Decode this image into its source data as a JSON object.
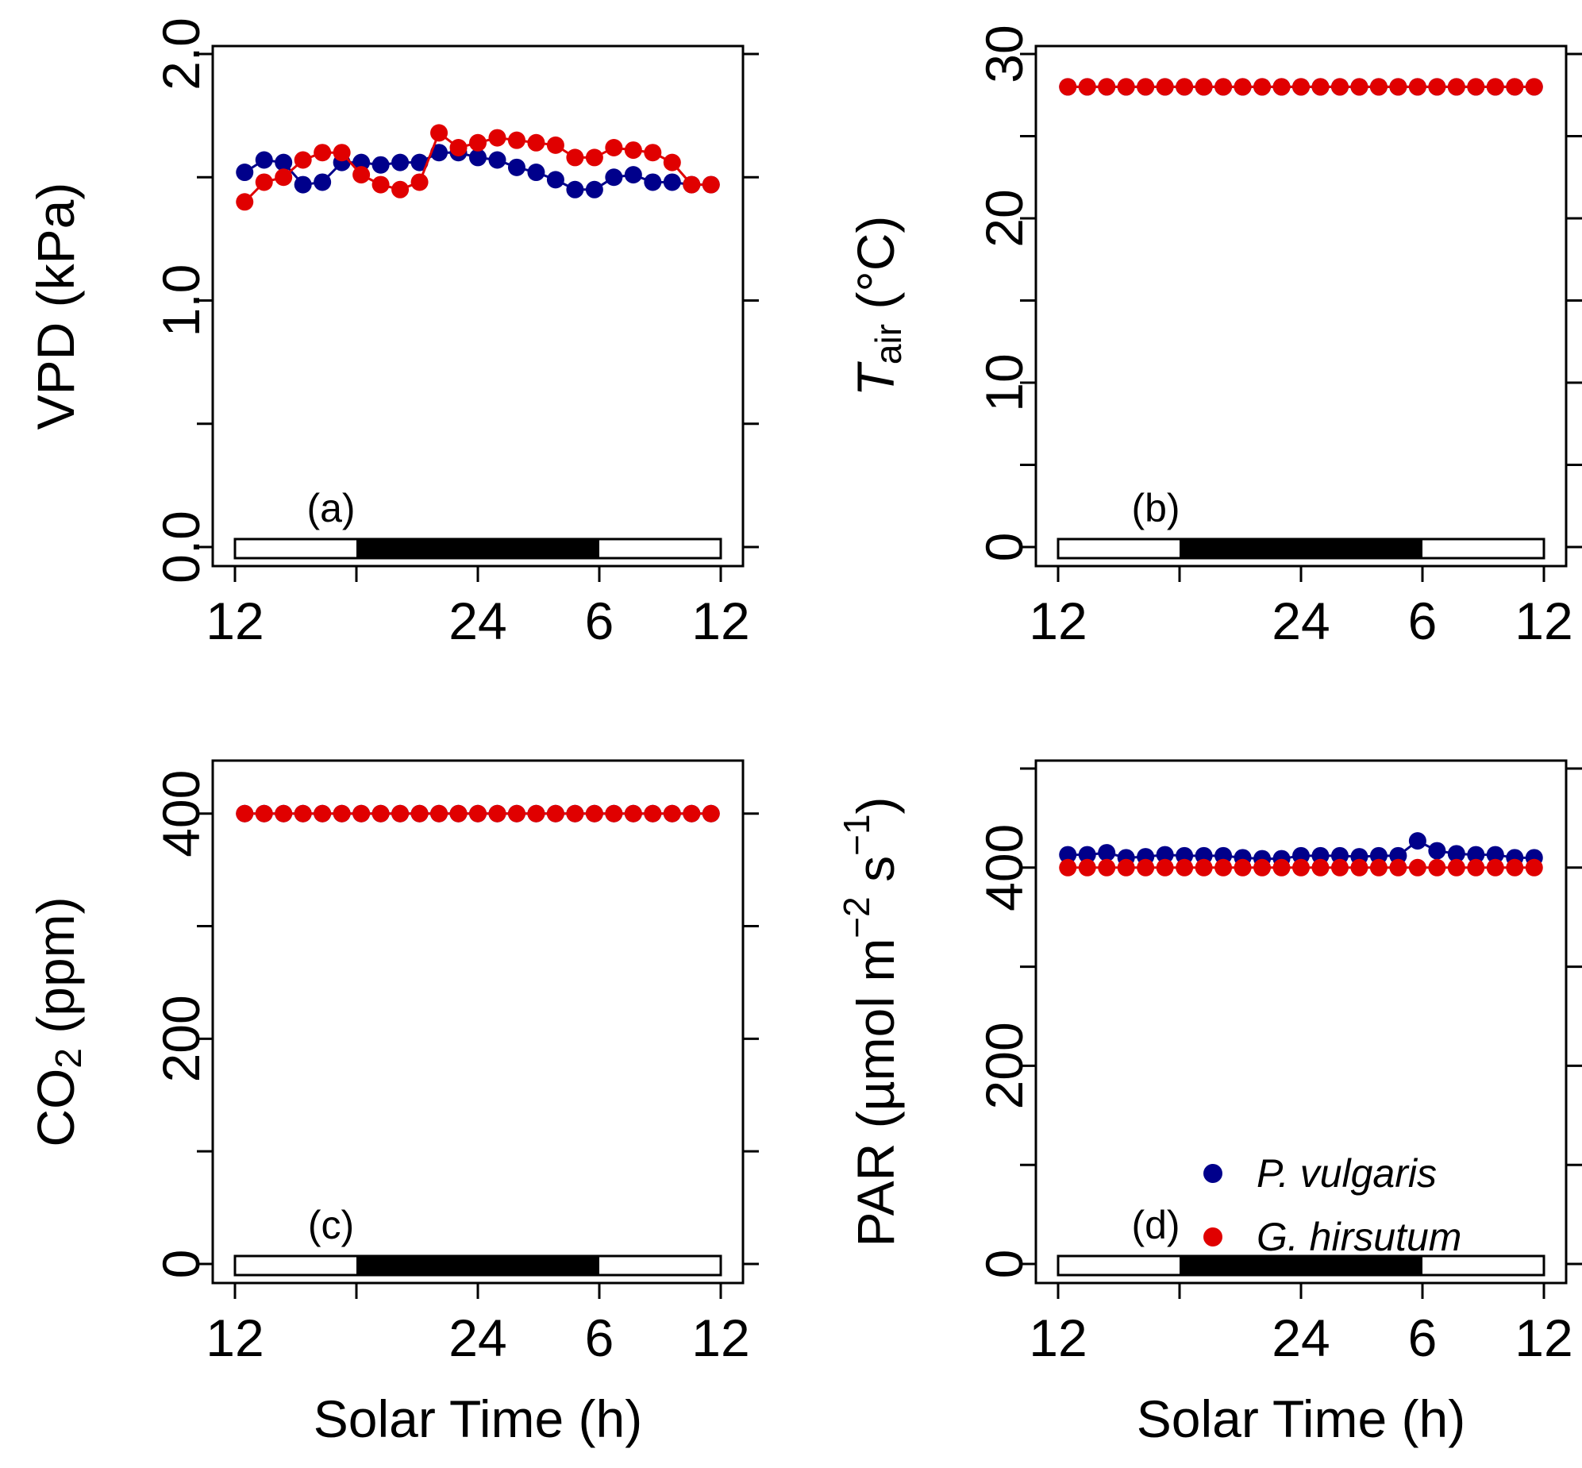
{
  "colors": {
    "p_vulgaris": "#00008b",
    "g_hirsutum": "#e00000",
    "axis": "#000000"
  },
  "legend": {
    "entries": [
      {
        "label": "P. vulgaris",
        "color": "#00008b"
      },
      {
        "label": "G. hirsutum",
        "color": "#e00000"
      }
    ]
  },
  "x_axis": {
    "label": "Solar Time (h)",
    "tick_labels": [
      "12",
      "24",
      "6",
      "12"
    ],
    "tick_positions_hours_since_noon": [
      0,
      12,
      18,
      24
    ],
    "night_start_hours_since_noon": 6,
    "night_end_hours_since_noon": 18
  },
  "chart_data": [
    {
      "type": "line",
      "panel": "(a)",
      "ylabel": "VPD (kPa)",
      "ylim": [
        0,
        2.0
      ],
      "y_ticks": [
        0,
        0.5,
        1.0,
        1.5,
        2.0
      ],
      "y_tick_labels": [
        "0.0",
        "",
        "1.0",
        "",
        "2.0"
      ],
      "x": [
        1,
        2,
        3,
        4,
        5,
        6,
        7,
        8,
        9,
        10,
        11,
        12,
        13,
        14,
        15,
        16,
        17,
        18,
        19,
        20,
        21,
        22,
        23,
        24,
        25
      ],
      "series": [
        {
          "name": "P. vulgaris",
          "values": [
            1.52,
            1.57,
            1.56,
            1.47,
            1.48,
            1.56,
            1.56,
            1.55,
            1.56,
            1.56,
            1.6,
            1.6,
            1.58,
            1.57,
            1.54,
            1.52,
            1.49,
            1.45,
            1.45,
            1.5,
            1.51,
            1.48,
            1.48,
            1.47,
            1.47
          ]
        },
        {
          "name": "G. hirsutum",
          "values": [
            1.4,
            1.48,
            1.5,
            1.57,
            1.6,
            1.6,
            1.51,
            1.47,
            1.45,
            1.48,
            1.68,
            1.62,
            1.64,
            1.66,
            1.65,
            1.64,
            1.63,
            1.58,
            1.58,
            1.62,
            1.61,
            1.6,
            1.56,
            1.47,
            1.47
          ]
        }
      ]
    },
    {
      "type": "line",
      "panel": "(b)",
      "ylabel_main": "T",
      "ylabel_sub": "air",
      "ylabel_unit": "(°C)",
      "ylim": [
        0,
        30
      ],
      "y_ticks": [
        0,
        5,
        10,
        15,
        20,
        25,
        30
      ],
      "y_tick_labels": [
        "0",
        "",
        "10",
        "",
        "20",
        "",
        "30"
      ],
      "x": [
        1,
        2,
        3,
        4,
        5,
        6,
        7,
        8,
        9,
        10,
        11,
        12,
        13,
        14,
        15,
        16,
        17,
        18,
        19,
        20,
        21,
        22,
        23,
        24,
        25
      ],
      "series": [
        {
          "name": "P. vulgaris",
          "values": [
            28,
            28,
            28,
            28,
            28,
            28,
            28,
            28,
            28,
            28,
            28,
            28,
            28,
            28,
            28,
            28,
            28,
            28,
            28,
            28,
            28,
            28,
            28,
            28,
            28
          ]
        },
        {
          "name": "G. hirsutum",
          "values": [
            28,
            28,
            28,
            28,
            28,
            28,
            28,
            28,
            28,
            28,
            28,
            28,
            28,
            28,
            28,
            28,
            28,
            28,
            28,
            28,
            28,
            28,
            28,
            28,
            28
          ]
        }
      ]
    },
    {
      "type": "line",
      "panel": "(c)",
      "ylabel_main": "CO",
      "ylabel_sub": "2",
      "ylabel_unit": "(ppm)",
      "ylim": [
        0,
        440
      ],
      "y_ticks": [
        0,
        100,
        200,
        300,
        400
      ],
      "y_tick_labels": [
        "0",
        "",
        "200",
        "",
        "400"
      ],
      "x": [
        1,
        2,
        3,
        4,
        5,
        6,
        7,
        8,
        9,
        10,
        11,
        12,
        13,
        14,
        15,
        16,
        17,
        18,
        19,
        20,
        21,
        22,
        23,
        24,
        25
      ],
      "series": [
        {
          "name": "P. vulgaris",
          "values": [
            400,
            400,
            400,
            400,
            400,
            400,
            400,
            400,
            400,
            400,
            400,
            400,
            400,
            400,
            400,
            400,
            400,
            400,
            400,
            400,
            400,
            400,
            400,
            400,
            400
          ]
        },
        {
          "name": "G. hirsutum",
          "values": [
            400,
            400,
            400,
            400,
            400,
            400,
            400,
            400,
            400,
            400,
            400,
            400,
            400,
            400,
            400,
            400,
            400,
            400,
            400,
            400,
            400,
            400,
            400,
            400,
            400
          ]
        }
      ]
    },
    {
      "type": "line",
      "panel": "(d)",
      "ylabel_main": "PAR",
      "ylabel_unit_prefix": "(µmol m",
      "ylabel_sup1": "−2",
      "ylabel_mid": " s",
      "ylabel_sup2": "−1",
      "ylabel_close": ")",
      "ylim": [
        0,
        500
      ],
      "y_ticks": [
        0,
        100,
        200,
        300,
        400,
        500
      ],
      "y_tick_labels": [
        "0",
        "",
        "200",
        "",
        "400",
        ""
      ],
      "x": [
        1,
        2,
        3,
        4,
        5,
        6,
        7,
        8,
        9,
        10,
        11,
        12,
        13,
        14,
        15,
        16,
        17,
        18,
        19,
        20,
        21,
        22,
        23,
        24,
        25
      ],
      "series": [
        {
          "name": "P. vulgaris",
          "values": [
            413,
            413,
            415,
            410,
            411,
            413,
            412,
            412,
            412,
            410,
            409,
            409,
            412,
            412,
            412,
            411,
            412,
            412,
            427,
            417,
            414,
            413,
            413,
            410,
            410
          ]
        },
        {
          "name": "G. hirsutum",
          "values": [
            400,
            400,
            400,
            400,
            400,
            400,
            400,
            400,
            400,
            400,
            400,
            400,
            400,
            400,
            400,
            400,
            400,
            400,
            400,
            400,
            400,
            400,
            400,
            400,
            400
          ]
        }
      ]
    }
  ]
}
